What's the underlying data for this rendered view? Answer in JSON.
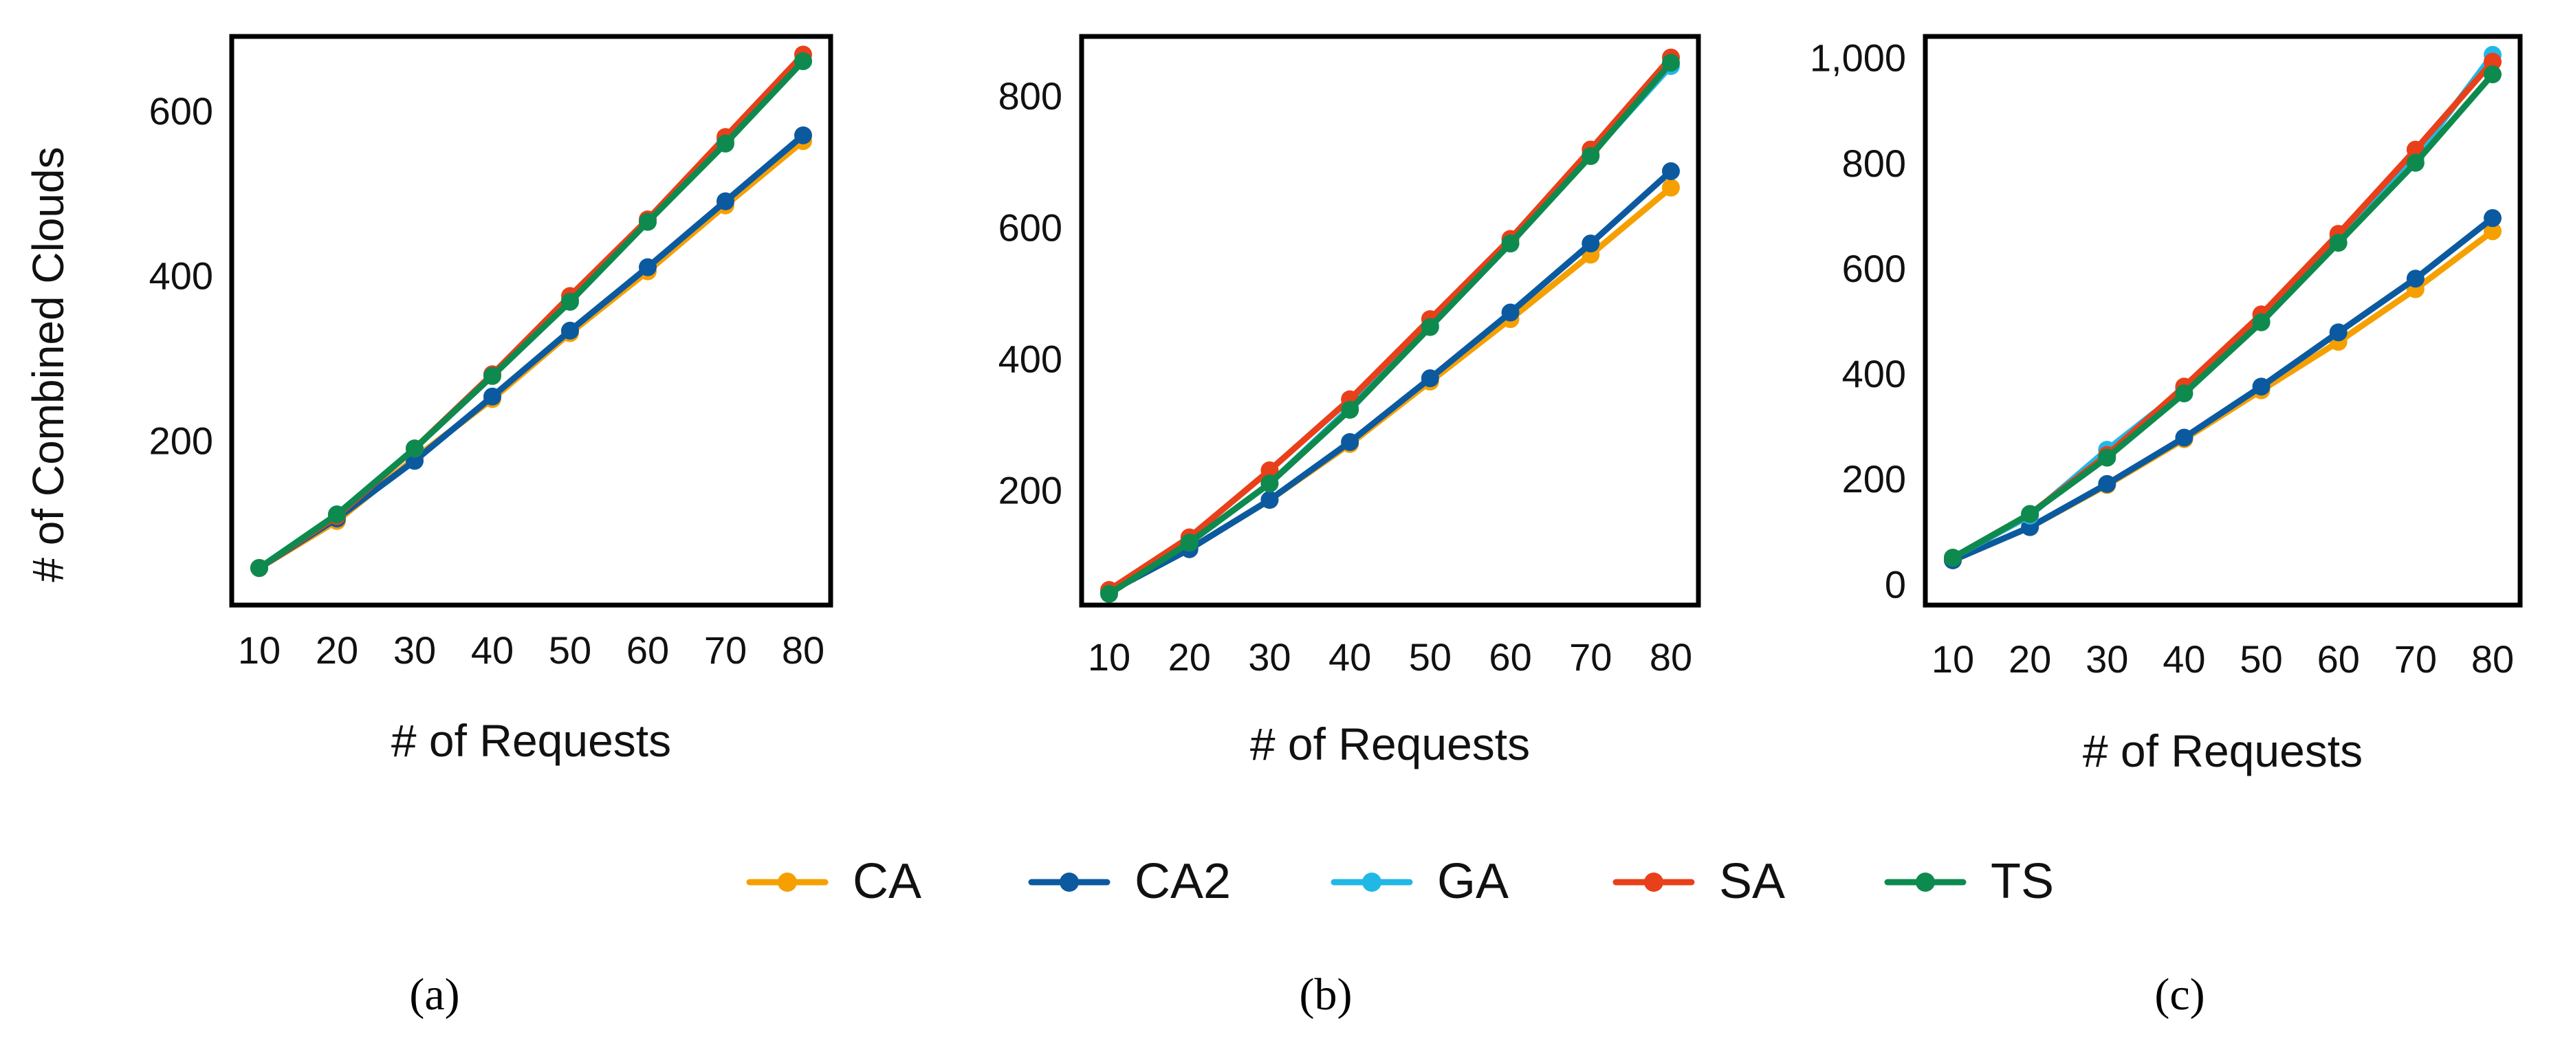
{
  "colors": {
    "CA": "#F5A000",
    "CA2": "#0B5AA0",
    "GA": "#22B8E6",
    "SA": "#E8401A",
    "TS": "#0E8A4E"
  },
  "legend": [
    "CA",
    "CA2",
    "GA",
    "SA",
    "TS"
  ],
  "chart_data": [
    {
      "type": "line",
      "caption": "(a)",
      "xlabel": "# of Requests",
      "ylabel": "# of Combined Clouds",
      "x": [
        10,
        20,
        30,
        40,
        50,
        60,
        70,
        80
      ],
      "xticks": [
        "10",
        "20",
        "30",
        "40",
        "50",
        "60",
        "70",
        "80"
      ],
      "ylim": [
        0,
        690
      ],
      "yticks": [
        200,
        400,
        600
      ],
      "ytick_labels": [
        "200",
        "400",
        "600"
      ],
      "series": [
        {
          "name": "CA",
          "values": [
            45,
            102,
            178,
            250,
            330,
            405,
            485,
            563
          ]
        },
        {
          "name": "CA2",
          "values": [
            45,
            105,
            175,
            253,
            333,
            410,
            490,
            570
          ]
        },
        {
          "name": "GA",
          "values": [
            45,
            110,
            190,
            280,
            370,
            465,
            565,
            660
          ]
        },
        {
          "name": "SA",
          "values": [
            45,
            108,
            190,
            280,
            375,
            468,
            568,
            668
          ]
        },
        {
          "name": "TS",
          "values": [
            45,
            110,
            190,
            278,
            368,
            465,
            560,
            660
          ]
        }
      ]
    },
    {
      "type": "line",
      "caption": "(b)",
      "xlabel": "# of Requests",
      "ylabel": "",
      "x": [
        10,
        20,
        30,
        40,
        50,
        60,
        70,
        80
      ],
      "xticks": [
        "10",
        "20",
        "30",
        "40",
        "50",
        "60",
        "70",
        "80"
      ],
      "ylim": [
        25,
        890
      ],
      "yticks": [
        200,
        400,
        600,
        800
      ],
      "ytick_labels": [
        "200",
        "400",
        "600",
        "800"
      ],
      "series": [
        {
          "name": "CA",
          "values": [
            45,
            110,
            185,
            270,
            365,
            460,
            558,
            660
          ]
        },
        {
          "name": "CA2",
          "values": [
            45,
            110,
            185,
            273,
            370,
            470,
            575,
            685
          ]
        },
        {
          "name": "GA",
          "values": [
            45,
            120,
            210,
            325,
            450,
            575,
            710,
            845
          ]
        },
        {
          "name": "SA",
          "values": [
            48,
            128,
            230,
            338,
            460,
            582,
            718,
            858
          ]
        },
        {
          "name": "TS",
          "values": [
            42,
            120,
            210,
            322,
            448,
            575,
            708,
            850
          ]
        }
      ]
    },
    {
      "type": "line",
      "caption": "(c)",
      "xlabel": "# of Requests",
      "ylabel": "",
      "x": [
        10,
        20,
        30,
        40,
        50,
        60,
        70,
        80
      ],
      "xticks": [
        "10",
        "20",
        "30",
        "40",
        "50",
        "60",
        "70",
        "80"
      ],
      "ylim": [
        -40,
        1040
      ],
      "yticks": [
        0,
        200,
        400,
        600,
        800,
        1000
      ],
      "ytick_labels": [
        "0",
        "200",
        "400",
        "600",
        "800",
        "1,000"
      ],
      "series": [
        {
          "name": "CA",
          "values": [
            45,
            108,
            188,
            275,
            368,
            460,
            560,
            670
          ]
        },
        {
          "name": "CA2",
          "values": [
            45,
            108,
            190,
            278,
            375,
            478,
            580,
            695
          ]
        },
        {
          "name": "GA",
          "values": [
            50,
            130,
            255,
            370,
            500,
            660,
            810,
            1005
          ]
        },
        {
          "name": "SA",
          "values": [
            50,
            133,
            245,
            375,
            512,
            665,
            825,
            992
          ]
        },
        {
          "name": "TS",
          "values": [
            50,
            133,
            240,
            362,
            497,
            648,
            800,
            968
          ]
        }
      ]
    }
  ]
}
